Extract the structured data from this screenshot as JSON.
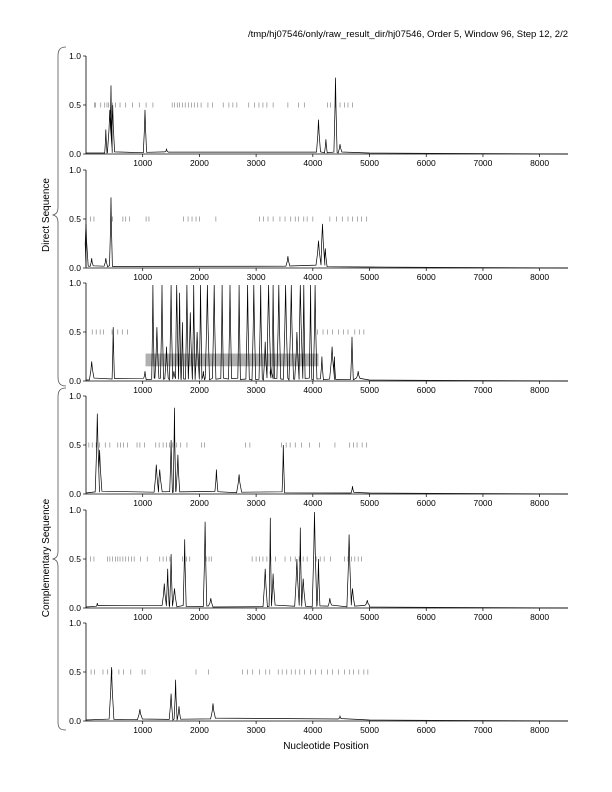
{
  "header": {
    "path_text": "/tmp/hj07546/only/raw_result_dir/hj07546, Order 5, Window 96, Step 12, 2/2"
  },
  "axis": {
    "xlabel": "Nucleotide Position"
  },
  "groups": {
    "direct_label": "Direct Sequence",
    "complementary_label": "Complementary Sequence"
  },
  "chart_data": {
    "type": "line",
    "title": "/tmp/hj07546/only/raw_result_dir/hj07546, Order 5, Window 96, Step 12, 2/2",
    "xlabel": "Nucleotide Position",
    "xlim": [
      0,
      8500
    ],
    "ylim": [
      0,
      1
    ],
    "x_ticks": [
      1000,
      2000,
      3000,
      4000,
      5000,
      6000,
      7000,
      8000
    ],
    "x_tick_labels": [
      "1000",
      "2000",
      "3000",
      "4000",
      "5000",
      "6000",
      "7000",
      "8000"
    ],
    "y_ticks": [
      0,
      0.5,
      1
    ],
    "y_tick_labels": [
      "0.0",
      "0.5",
      "1.0"
    ],
    "colors": {
      "line": "#000000",
      "highlight": "#b0b0b0",
      "stop_marks": "#888888"
    },
    "panels": [
      {
        "group": "Direct Sequence",
        "peaks": [
          [
            350,
            0.25
          ],
          [
            420,
            0.45
          ],
          [
            440,
            0.7
          ],
          [
            470,
            0.5
          ],
          [
            1040,
            0.45
          ],
          [
            1420,
            0.05
          ],
          [
            4100,
            0.35
          ],
          [
            4230,
            0.15
          ],
          [
            4400,
            0.78
          ],
          [
            4480,
            0.1
          ]
        ],
        "stop_codons": [
          150,
          170,
          260,
          330,
          370,
          400,
          440,
          470,
          520,
          600,
          700,
          820,
          940,
          1060,
          1180,
          1520,
          1560,
          1610,
          1650,
          1700,
          1750,
          1810,
          1860,
          1910,
          1970,
          2030,
          2150,
          2230,
          2420,
          2520,
          2590,
          2660,
          2870,
          2970,
          3050,
          3120,
          3190,
          3300,
          3560,
          3750,
          3850,
          4260,
          4310,
          4400,
          4480,
          4560,
          4620,
          4700
        ]
      },
      {
        "group": "Direct Sequence",
        "peaks": [
          [
            0,
            0.45
          ],
          [
            100,
            0.1
          ],
          [
            350,
            0.1
          ],
          [
            440,
            0.72
          ],
          [
            3560,
            0.12
          ],
          [
            4100,
            0.28
          ],
          [
            4170,
            0.45
          ],
          [
            4220,
            0.2
          ]
        ],
        "stop_codons": [
          80,
          140,
          470,
          650,
          700,
          770,
          1060,
          1110,
          1720,
          1800,
          1870,
          1940,
          2000,
          2290,
          3060,
          3130,
          3210,
          3300,
          3420,
          3510,
          3610,
          3690,
          3750,
          3840,
          3900,
          4000,
          4300,
          4420,
          4520,
          4620,
          4700,
          4790,
          4860,
          4950
        ]
      },
      {
        "group": "Direct Sequence",
        "peaks": [
          [
            100,
            0.2
          ],
          [
            480,
            0.55
          ],
          [
            1040,
            0.1
          ],
          [
            1180,
            0.98
          ],
          [
            1250,
            0.55
          ],
          [
            1340,
            0.98
          ],
          [
            1420,
            0.35
          ],
          [
            1500,
            0.98
          ],
          [
            1550,
            0.1
          ],
          [
            1600,
            0.98
          ],
          [
            1650,
            0.9
          ],
          [
            1700,
            0.6
          ],
          [
            1780,
            0.98
          ],
          [
            1840,
            0.7
          ],
          [
            1900,
            0.98
          ],
          [
            1960,
            0.5
          ],
          [
            2020,
            0.98
          ],
          [
            2070,
            0.1
          ],
          [
            2140,
            0.98
          ],
          [
            2260,
            0.98
          ],
          [
            2400,
            0.98
          ],
          [
            2540,
            0.98
          ],
          [
            2700,
            0.98
          ],
          [
            2850,
            0.98
          ],
          [
            2960,
            0.98
          ],
          [
            3080,
            0.98
          ],
          [
            3160,
            0.4
          ],
          [
            3220,
            0.98
          ],
          [
            3260,
            0.15
          ],
          [
            3300,
            0.98
          ],
          [
            3400,
            0.98
          ],
          [
            3520,
            0.98
          ],
          [
            3620,
            0.98
          ],
          [
            3720,
            0.5
          ],
          [
            3780,
            0.98
          ],
          [
            3840,
            0.98
          ],
          [
            3960,
            0.98
          ],
          [
            4040,
            0.98
          ],
          [
            4160,
            0.25
          ],
          [
            4340,
            0.35
          ],
          [
            4380,
            0.25
          ],
          [
            4690,
            0.45
          ],
          [
            4800,
            0.1
          ]
        ],
        "stop_codons": [
          110,
          180,
          250,
          310,
          460,
          560,
          640,
          730,
          4080,
          4180,
          4260,
          4350,
          4450,
          4540,
          4620,
          4740,
          4820,
          4900
        ],
        "highlight_range": [
          1050,
          4100,
          0.15,
          0.28
        ]
      },
      {
        "group": "Complementary Sequence",
        "peaks": [
          [
            200,
            0.82
          ],
          [
            240,
            0.45
          ],
          [
            1240,
            0.3
          ],
          [
            1300,
            0.25
          ],
          [
            1500,
            0.55
          ],
          [
            1560,
            0.88
          ],
          [
            1620,
            0.4
          ],
          [
            2300,
            0.25
          ],
          [
            2700,
            0.2
          ],
          [
            3480,
            0.5
          ],
          [
            4700,
            0.08
          ]
        ],
        "stop_codons": [
          50,
          110,
          180,
          240,
          340,
          420,
          560,
          610,
          660,
          730,
          900,
          950,
          1030,
          1230,
          1290,
          1360,
          1420,
          1470,
          1530,
          1600,
          1670,
          1780,
          2040,
          2090,
          2810,
          2890,
          3450,
          3530,
          3600,
          3690,
          3800,
          3940,
          4120,
          4390,
          4650,
          4720,
          4780,
          4870,
          4950
        ]
      },
      {
        "group": "Complementary Sequence",
        "peaks": [
          [
            200,
            0.05
          ],
          [
            1380,
            0.25
          ],
          [
            1440,
            0.4
          ],
          [
            1500,
            0.55
          ],
          [
            1560,
            0.2
          ],
          [
            1740,
            0.7
          ],
          [
            2100,
            0.88
          ],
          [
            2200,
            0.1
          ],
          [
            3160,
            0.4
          ],
          [
            3250,
            0.92
          ],
          [
            3300,
            0.35
          ],
          [
            3720,
            0.5
          ],
          [
            3780,
            0.82
          ],
          [
            3830,
            0.3
          ],
          [
            4030,
            0.98
          ],
          [
            4100,
            0.5
          ],
          [
            4300,
            0.1
          ],
          [
            4640,
            0.75
          ],
          [
            4700,
            0.2
          ],
          [
            4960,
            0.08
          ]
        ],
        "stop_codons": [
          80,
          140,
          380,
          420,
          470,
          520,
          560,
          600,
          650,
          700,
          750,
          800,
          850,
          960,
          1080,
          1300,
          1360,
          1420,
          1480,
          1700,
          1770,
          1830,
          2120,
          2170,
          2210,
          2930,
          3000,
          3060,
          3120,
          3190,
          3260,
          3340,
          3510,
          3610,
          3690,
          3760,
          3830,
          3900,
          4060,
          4130,
          4200,
          4310,
          4560,
          4620,
          4680,
          4740,
          4800,
          4860
        ]
      },
      {
        "group": "Complementary Sequence",
        "peaks": [
          [
            450,
            0.55
          ],
          [
            950,
            0.12
          ],
          [
            1500,
            0.28
          ],
          [
            1580,
            0.42
          ],
          [
            1640,
            0.15
          ],
          [
            2240,
            0.18
          ],
          [
            4480,
            0.05
          ]
        ],
        "stop_codons": [
          90,
          150,
          300,
          380,
          460,
          580,
          660,
          790,
          990,
          1040,
          1940,
          2160,
          2760,
          2850,
          2940,
          3060,
          3170,
          3240,
          3390,
          3460,
          3540,
          3620,
          3690,
          3770,
          3850,
          3960,
          4050,
          4150,
          4260,
          4350,
          4450,
          4560,
          4650,
          4720,
          4810,
          4900,
          4970
        ]
      }
    ]
  }
}
